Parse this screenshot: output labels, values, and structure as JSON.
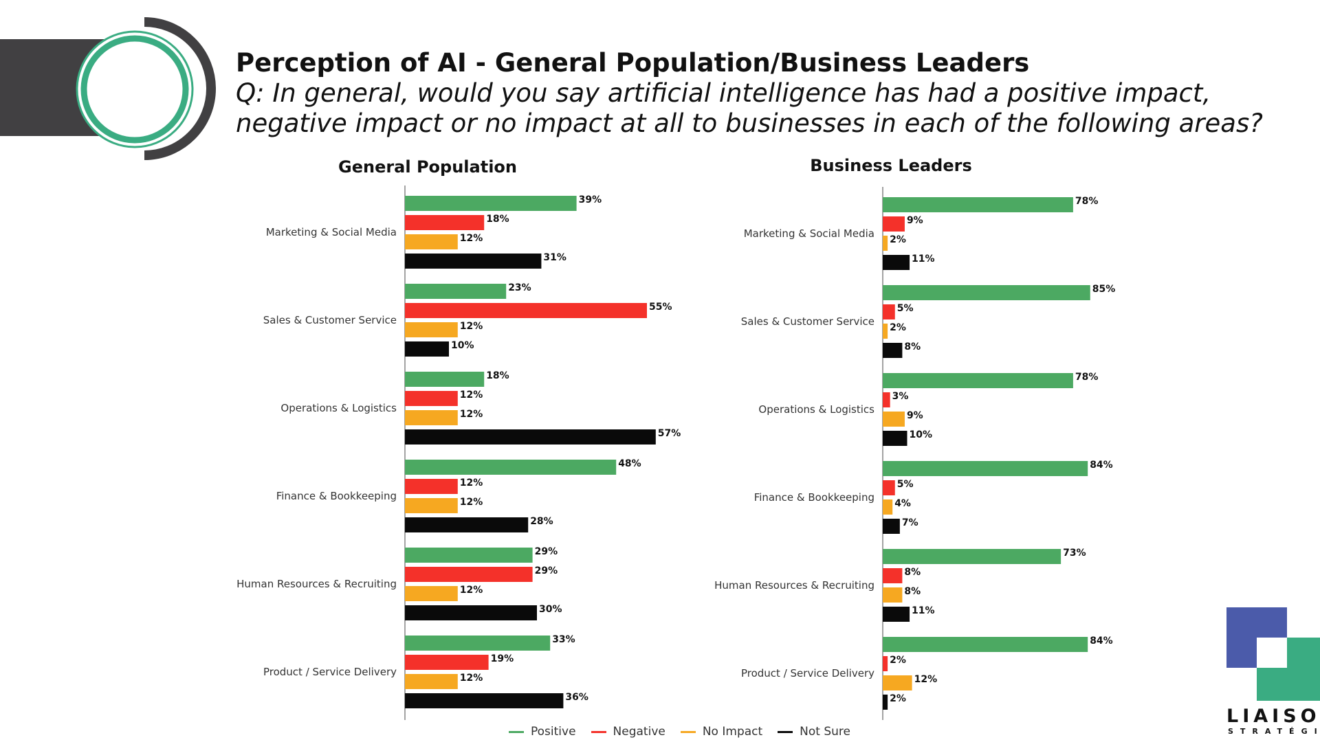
{
  "header": {
    "title": "Perception of AI - General Population/Business Leaders",
    "question": "Q: In general, would you say artificial intelligence has had a positive impact, negative impact or no impact at all to businesses in each of the following areas?"
  },
  "legend": [
    {
      "label": "Positive",
      "color": "#4CA962"
    },
    {
      "label": "Negative",
      "color": "#F4312A"
    },
    {
      "label": "No Impact",
      "color": "#F6A821"
    },
    {
      "label": "Not Sure",
      "color": "#0A0A0A"
    }
  ],
  "logo": {
    "word": "LIAISON",
    "sub": "STRATÉGIES",
    "colors": [
      "#4B5BAA",
      "#3AAC82"
    ]
  },
  "chart_data": [
    {
      "type": "bar",
      "orientation": "horizontal",
      "title": "General Population",
      "categories": [
        "Marketing & Social Media",
        "Sales & Customer Service",
        "Operations & Logistics",
        "Finance & Bookkeeping",
        "Human Resources & Recruiting",
        "Product / Service Delivery"
      ],
      "series": [
        {
          "name": "Positive",
          "values": [
            39,
            23,
            18,
            48,
            29,
            33
          ]
        },
        {
          "name": "Negative",
          "values": [
            18,
            55,
            12,
            12,
            29,
            19
          ]
        },
        {
          "name": "No Impact",
          "values": [
            12,
            12,
            12,
            12,
            12,
            12
          ]
        },
        {
          "name": "Not Sure",
          "values": [
            31,
            10,
            57,
            28,
            30,
            36
          ]
        }
      ],
      "value_suffix": "%",
      "xlim": [
        0,
        60
      ]
    },
    {
      "type": "bar",
      "orientation": "horizontal",
      "title": "Business Leaders",
      "categories": [
        "Marketing & Social Media",
        "Sales & Customer Service",
        "Operations & Logistics",
        "Finance & Bookkeeping",
        "Human Resources & Recruiting",
        "Product / Service Delivery"
      ],
      "series": [
        {
          "name": "Positive",
          "values": [
            78,
            85,
            78,
            84,
            73,
            84
          ]
        },
        {
          "name": "Negative",
          "values": [
            9,
            5,
            3,
            5,
            8,
            2
          ]
        },
        {
          "name": "No Impact",
          "values": [
            2,
            2,
            9,
            4,
            8,
            12
          ]
        },
        {
          "name": "Not Sure",
          "values": [
            11,
            8,
            10,
            7,
            11,
            2
          ]
        }
      ],
      "value_suffix": "%",
      "xlim": [
        0,
        90
      ]
    }
  ]
}
